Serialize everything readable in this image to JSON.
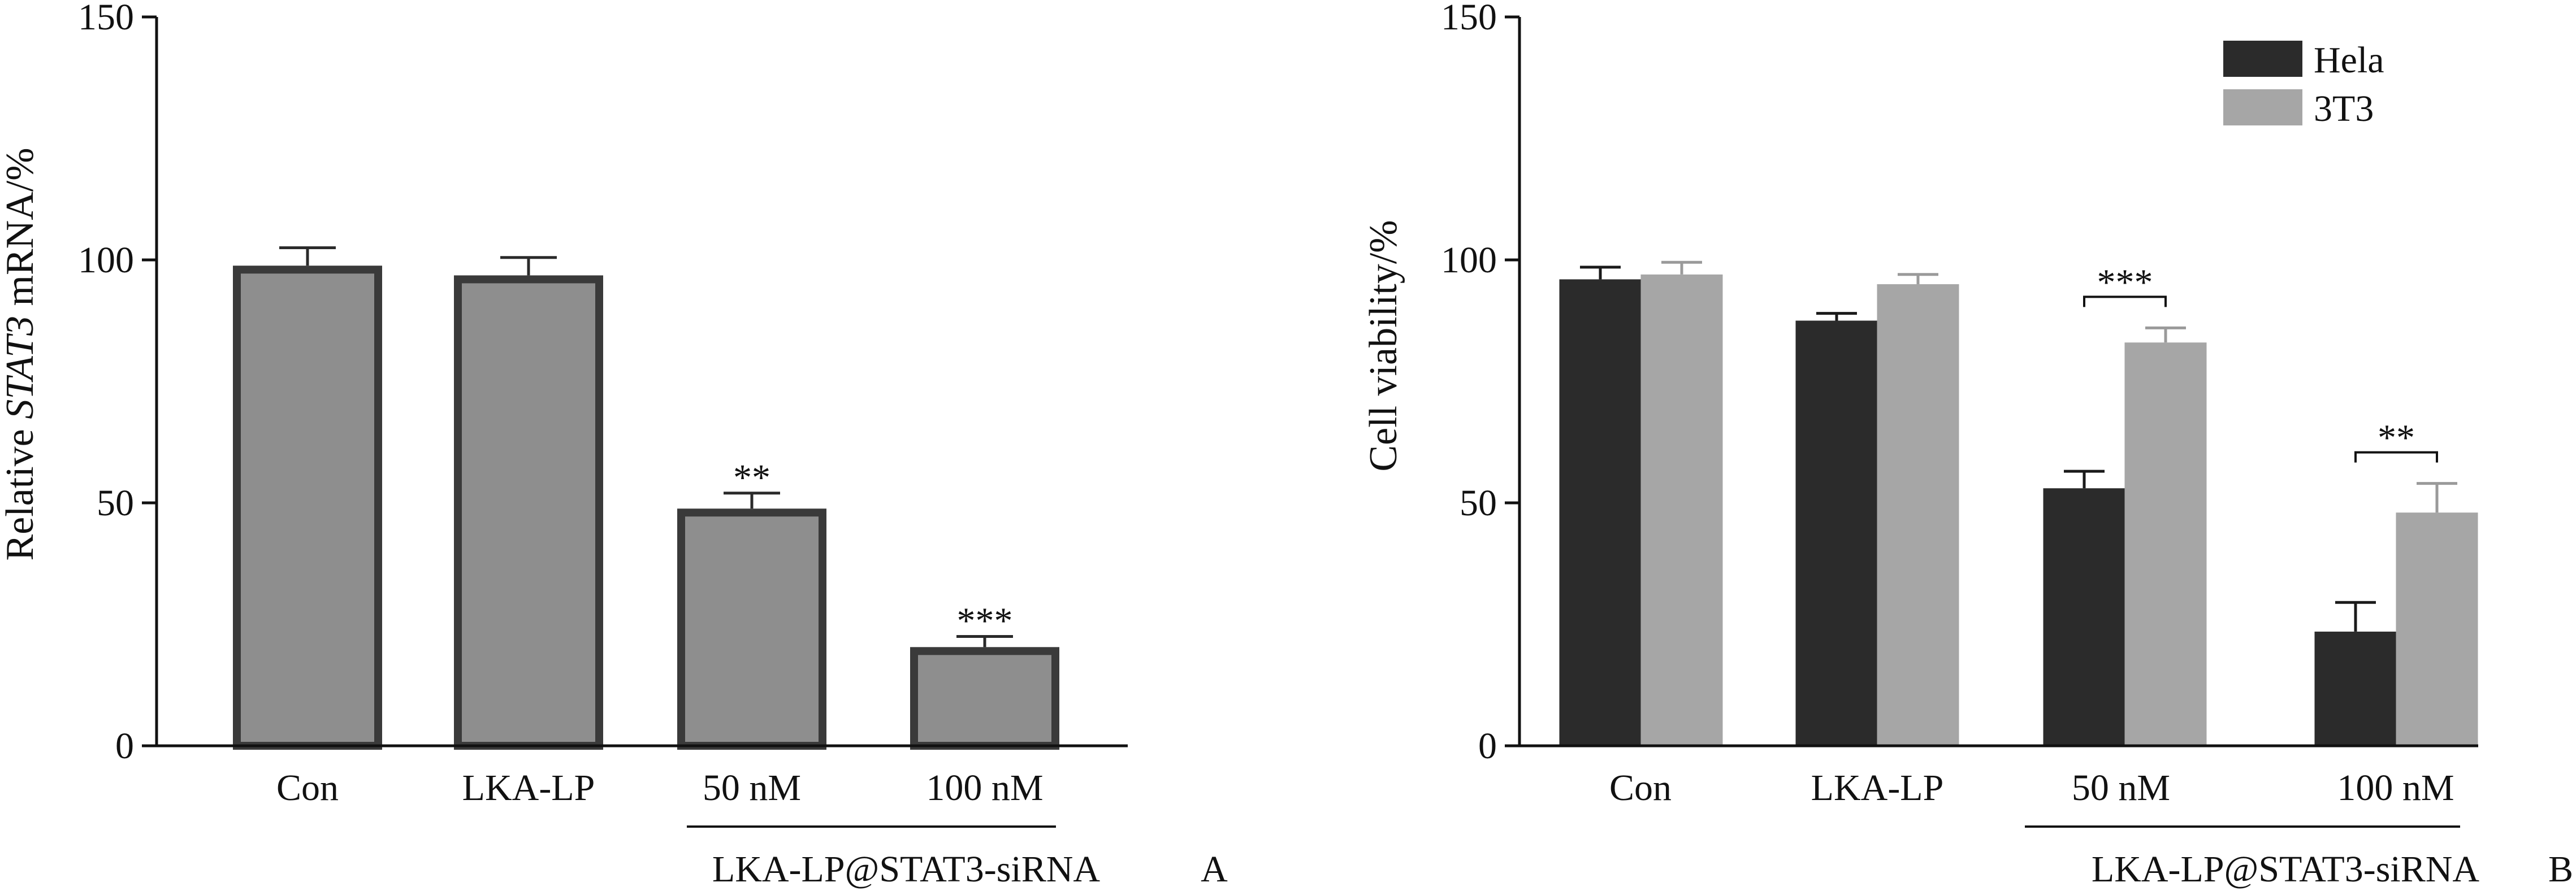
{
  "colors": {
    "panelA_bar_fill": "#8e8e8e",
    "panelA_bar_edge": "#3a3a3a",
    "hela": "#2b2b2b",
    "t3": "#a6a6a6",
    "axis": "#111111"
  },
  "chart_data": [
    {
      "type": "bar",
      "panel": "A",
      "categories": [
        "Con",
        "LKA-LP",
        "50 nM",
        "100 nM"
      ],
      "group_label": "LKA-LP@STAT3-siRNA",
      "group_categories": [
        "50 nM",
        "100 nM"
      ],
      "ylabel_parts": [
        "Relative ",
        "STAT3",
        " mRNA/%"
      ],
      "ylim": [
        0,
        150
      ],
      "yticks": [
        "0",
        "50",
        "100",
        "150"
      ],
      "series": [
        {
          "values": [
            98,
            96,
            48,
            19.5
          ],
          "errors": [
            4.5,
            4.5,
            4,
            3
          ],
          "significance": [
            "",
            "",
            "**",
            "***"
          ]
        }
      ],
      "grid": false
    },
    {
      "type": "bar",
      "panel": "B",
      "categories": [
        "Con",
        "LKA-LP",
        "50 nM",
        "100 nM"
      ],
      "group_label": "LKA-LP@STAT3-siRNA",
      "group_categories": [
        "50 nM",
        "100 nM"
      ],
      "ylabel": "Cell viability/%",
      "ylim": [
        0,
        150
      ],
      "yticks": [
        "0",
        "50",
        "100",
        "150"
      ],
      "legend_position": "top-right",
      "series": [
        {
          "name": "Hela",
          "values": [
            96,
            87.5,
            53,
            23.5
          ],
          "errors": [
            2.5,
            1.5,
            3.5,
            6
          ]
        },
        {
          "name": "3T3",
          "values": [
            97,
            95,
            83,
            48
          ],
          "errors": [
            2.5,
            2,
            3,
            6
          ]
        }
      ],
      "pair_significance": [
        "",
        "",
        "***",
        "**"
      ],
      "grid": false
    }
  ]
}
